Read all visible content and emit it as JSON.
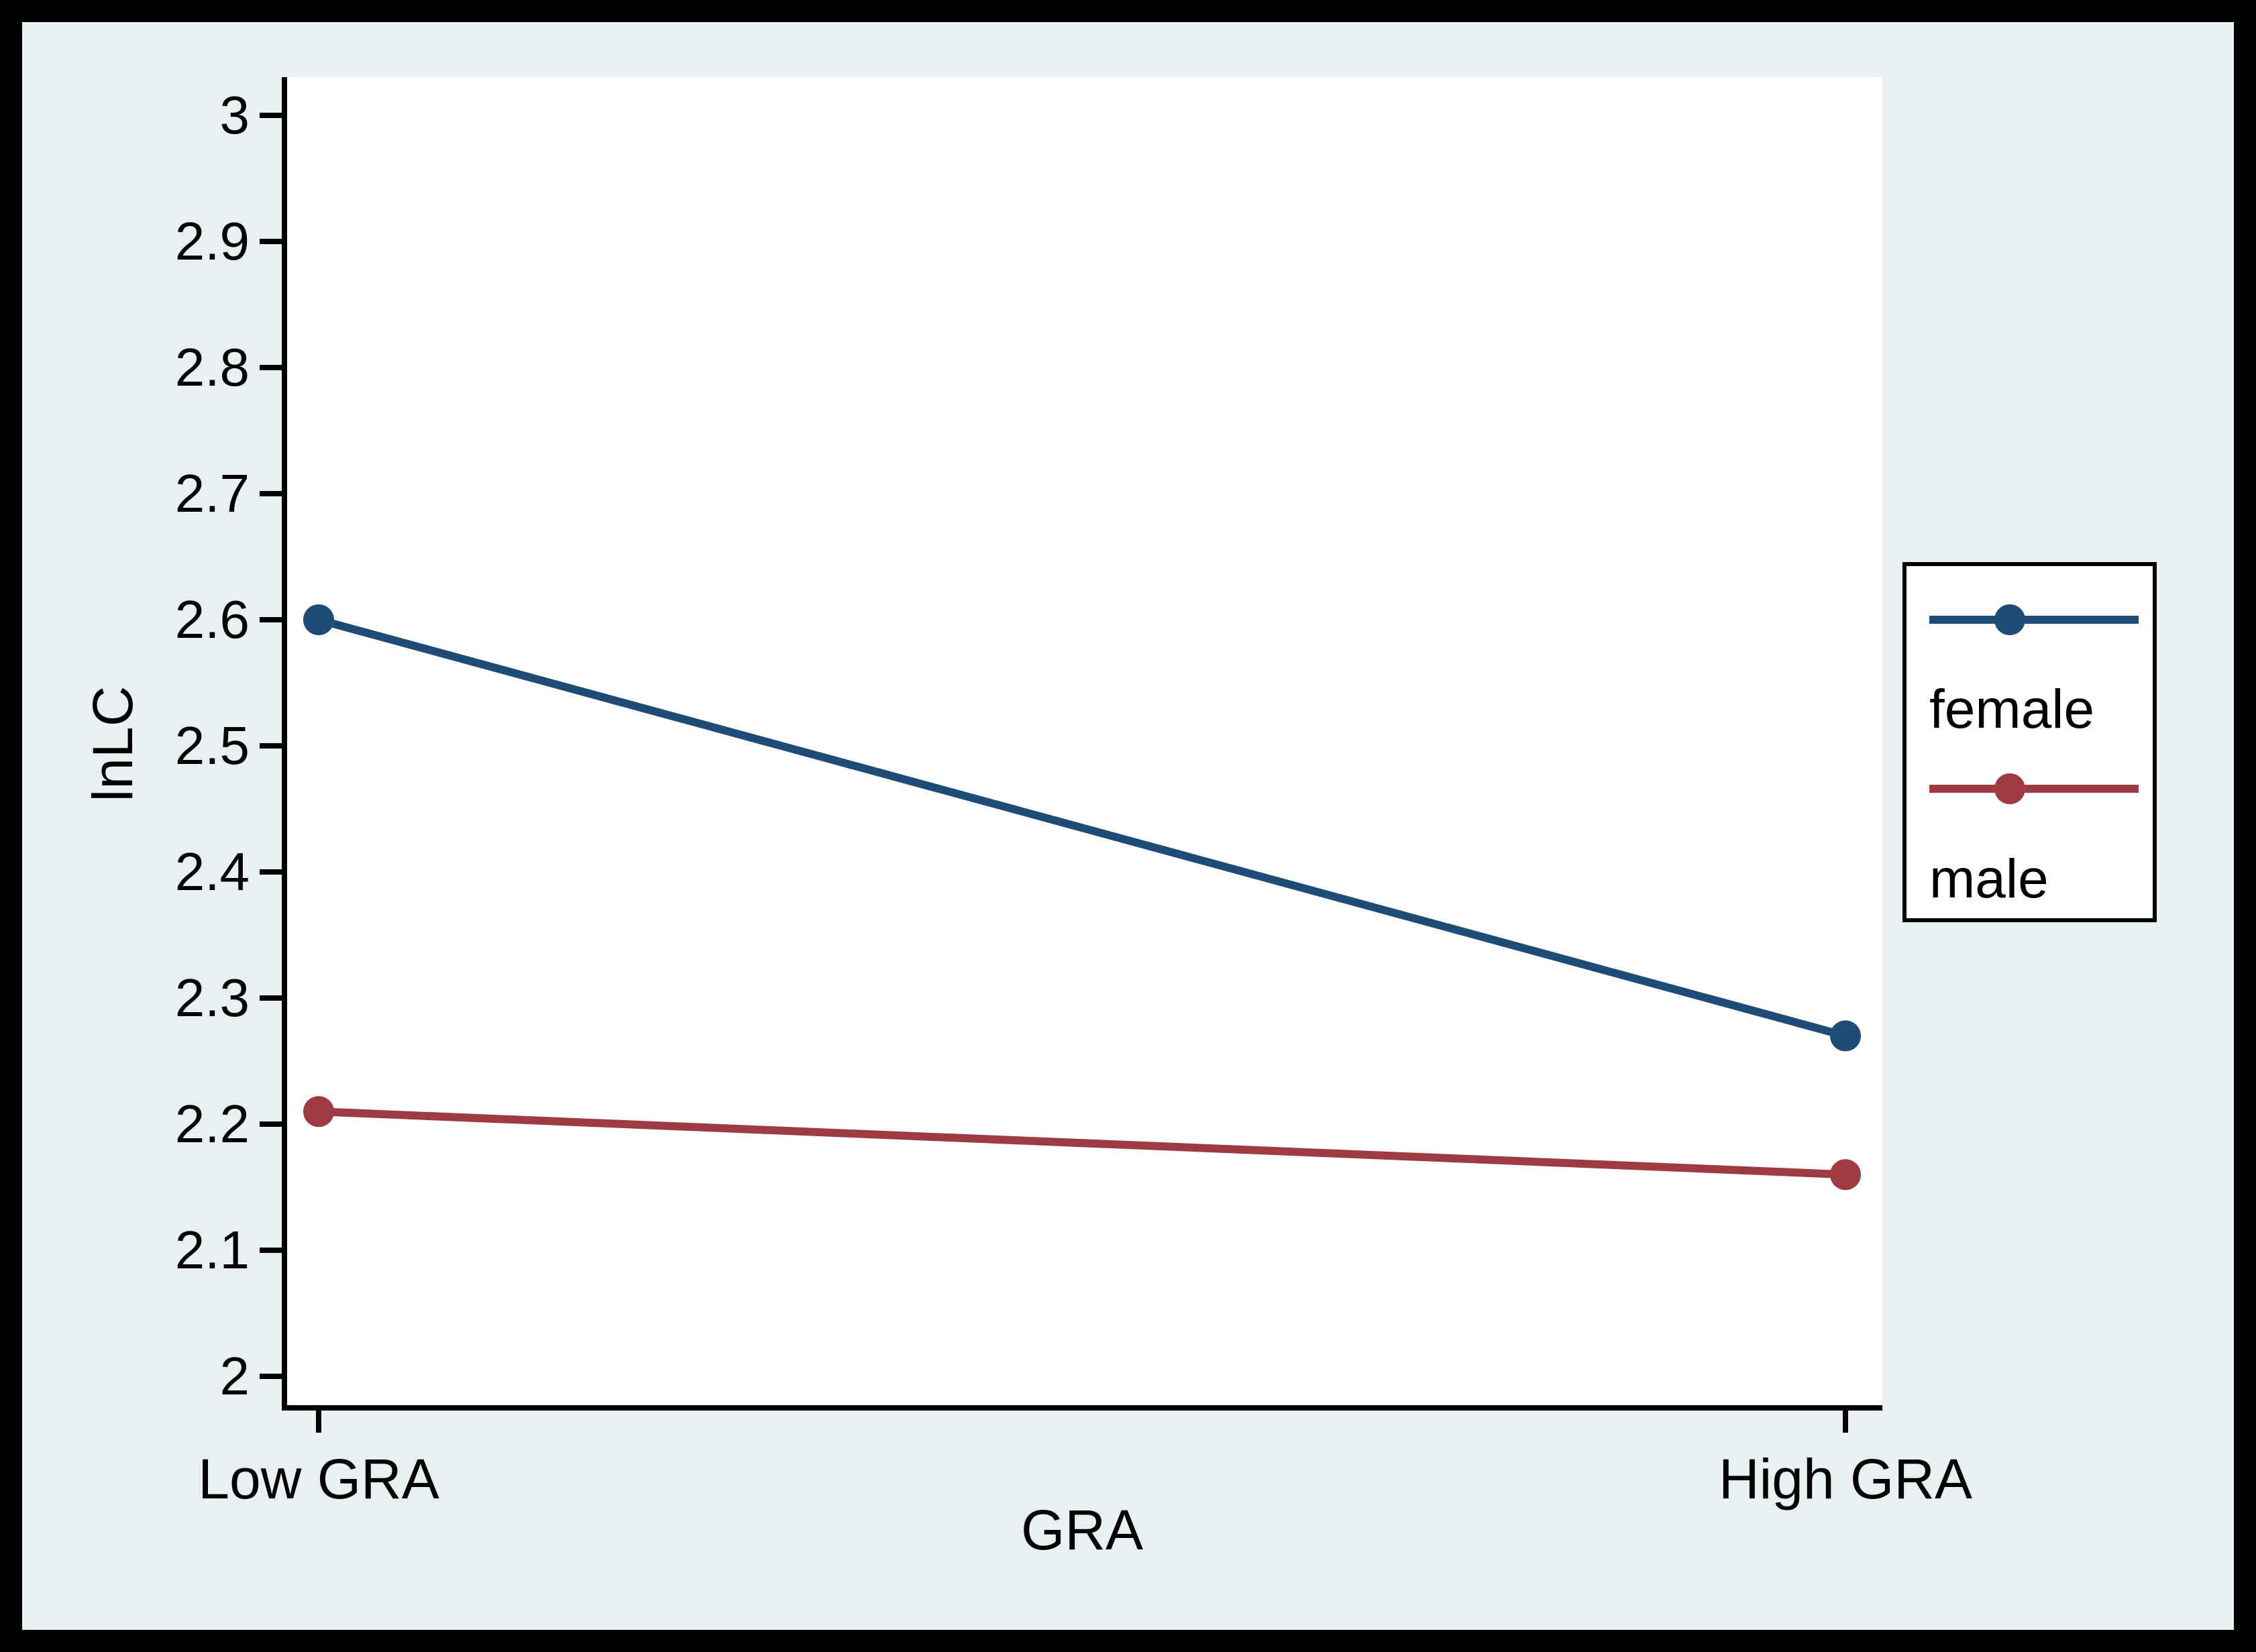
{
  "chart_data": {
    "type": "line",
    "title": "",
    "categories": [
      "Low GRA",
      "High GRA"
    ],
    "series": [
      {
        "name": "female",
        "color": "#1e4c77",
        "values": [
          2.6,
          2.27
        ]
      },
      {
        "name": "male",
        "color": "#9d3a42",
        "values": [
          2.21,
          2.16
        ]
      }
    ],
    "xlabel": "GRA",
    "ylabel": "lnLC",
    "ylim": [
      2,
      3
    ],
    "yticks": [
      2,
      2.1,
      2.2,
      2.3,
      2.4,
      2.5,
      2.6,
      2.7,
      2.8,
      2.9,
      3
    ],
    "ytick_labels": [
      "2",
      "2.1",
      "2.2",
      "2.3",
      "2.4",
      "2.5",
      "2.6",
      "2.7",
      "2.8",
      "2.9",
      "3"
    ],
    "grid": false,
    "marker": "circle",
    "legend_position": "right-outside",
    "legend_labels": [
      "female",
      "male"
    ]
  },
  "colors": {
    "frame": "#000000",
    "background": "#e9f0f2",
    "plot_background": "#ffffff",
    "axis": "#000000",
    "text": "#000000",
    "series_female": "#1e4c77",
    "series_male": "#9d3a42"
  }
}
